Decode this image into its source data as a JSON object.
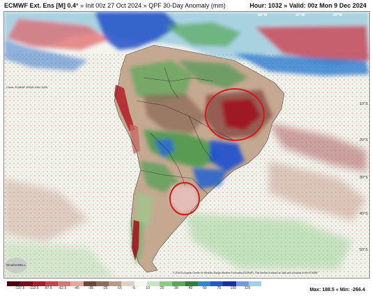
{
  "header": {
    "model": "ECMWF Ext. Ens [M]",
    "resolution": "0.4°",
    "init": "Init 00z 27 Oct 2024",
    "sep": "»",
    "product": "QPF 30-Day Anomaly (mm)",
    "hour": "Hour: 1032",
    "valid": "Valid: 00z Mon 9 Dec 2024"
  },
  "map": {
    "region": "South America",
    "latitude_labels": [
      "10°S",
      "20°S",
      "30°S",
      "40°S",
      "50°S"
    ],
    "longitude_labels": [
      "40°W",
      "30°W",
      "20°W"
    ],
    "highlight_circles": [
      "central Brazil",
      "northern Argentina"
    ],
    "colors": {
      "ocean": "#f4f4ef",
      "dry_dark": "#8a0a1c",
      "dry": "#c4484f",
      "brown": "#9c7a64",
      "tan": "#d7c3b3",
      "green": "#5aa05a",
      "blue": "#1848c8",
      "circle": "#d41818"
    }
  },
  "footer": {
    "climo": "Climo: ECMWF ERA5 1991-2020",
    "copyright": "© 2024 European Centre for Medium-Range Weather Forecasts (ECMWF). This service is based on data and products of the ECMWF.",
    "logo_text": "WeatherBELL",
    "max": "Max: 188.5",
    "min": "Min: -266.4",
    "colorbar_ticks": [
      "-137.5",
      "-112.5",
      "-87.5",
      "-62.5",
      "-45",
      "-35",
      "-25",
      "-15",
      "-5",
      "10",
      "20",
      "30",
      "40",
      "50",
      "75",
      "100",
      "125"
    ]
  }
}
